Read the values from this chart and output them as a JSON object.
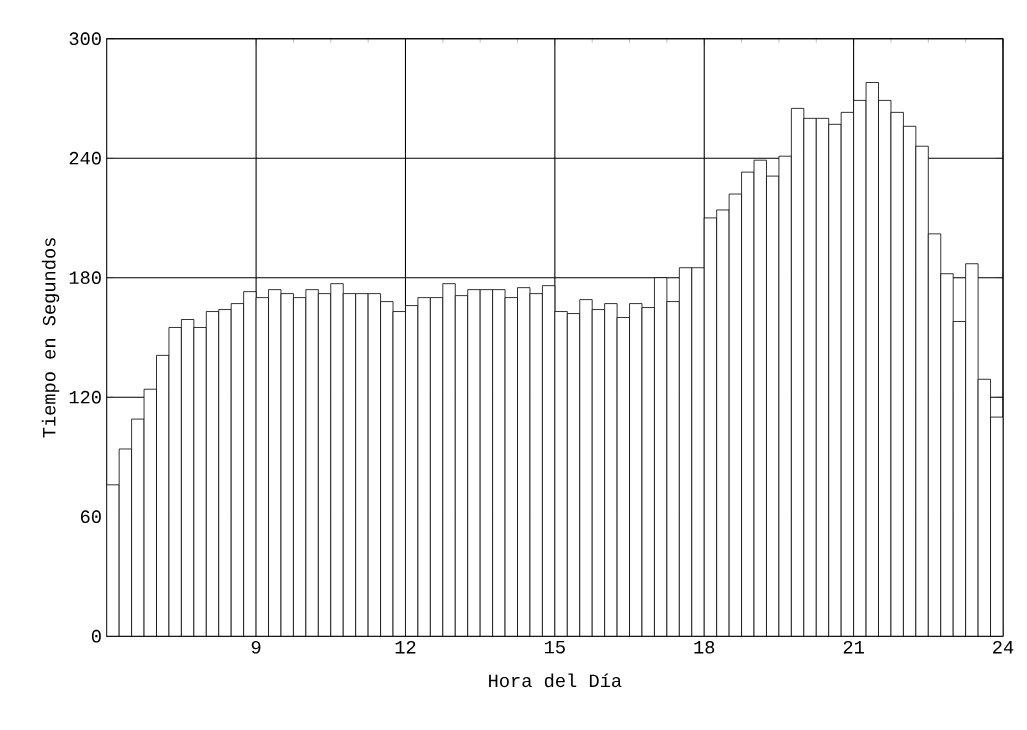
{
  "chart_data": {
    "type": "histogram",
    "xlabel": "Hora del Día",
    "ylabel": "Tiempo en Segundos",
    "bins": [
      6,
      6.25,
      6.5,
      6.75,
      7,
      7.25,
      7.5,
      7.75,
      8,
      8.25,
      8.5,
      8.75,
      9,
      9.25,
      9.5,
      9.75,
      10,
      10.25,
      10.5,
      10.75,
      11,
      11.25,
      11.5,
      11.75,
      12,
      12.25,
      12.5,
      12.75,
      13,
      13.25,
      13.5,
      13.75,
      14,
      14.25,
      14.5,
      14.75,
      15,
      15.25,
      15.5,
      15.75,
      16,
      16.25,
      16.5,
      16.75,
      17,
      17.25,
      17.5,
      17.75,
      18,
      18.25,
      18.5,
      18.75,
      19,
      19.25,
      19.5,
      19.75,
      20,
      20.25,
      20.5,
      20.75,
      21,
      21.25,
      21.5,
      21.75,
      22,
      22.25,
      22.5,
      22.75,
      23,
      23.25,
      23.5,
      23.75,
      24
    ],
    "values": [
      76,
      94,
      109,
      124,
      141,
      155,
      159,
      155,
      163,
      164,
      167,
      173,
      170,
      174,
      172,
      170,
      174,
      172,
      177,
      172,
      172,
      172,
      168,
      163,
      166,
      170,
      170,
      177,
      171,
      174,
      174,
      174,
      170,
      175,
      172,
      176,
      163,
      162,
      169,
      164,
      167,
      160,
      167,
      165,
      180,
      168,
      185,
      185,
      210,
      214,
      222,
      233,
      239,
      231,
      241,
      265,
      260,
      260,
      257,
      263,
      269,
      278,
      269,
      263,
      256,
      246,
      202,
      182,
      158,
      187,
      129,
      110
    ],
    "color": "#ffffff",
    "xlim": [
      6,
      24
    ],
    "ylim": [
      0,
      300
    ],
    "xticks": [
      9,
      12,
      15,
      18,
      21,
      24
    ],
    "yticks": [
      0,
      60,
      120,
      180,
      240,
      300
    ],
    "grid": true
  }
}
